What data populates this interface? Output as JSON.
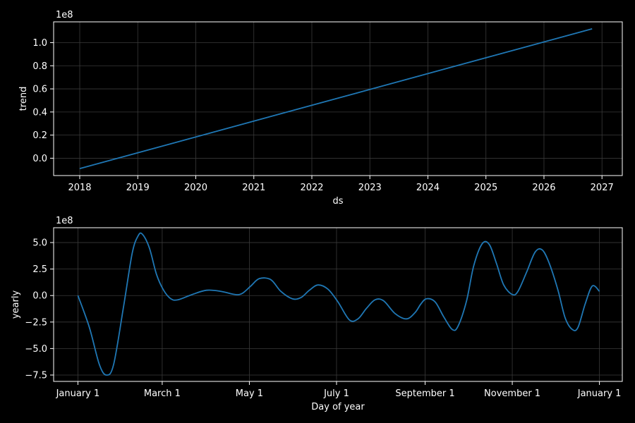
{
  "colors": {
    "background": "#000000",
    "foreground": "#ffffff",
    "line": "#1f77b4",
    "grid": "#3a3a3a"
  },
  "chart_data": [
    {
      "type": "line",
      "xlabel": "ds",
      "ylabel": "trend",
      "offset_label": "1e8",
      "grid": true,
      "x_ticks": [
        "2018",
        "2019",
        "2020",
        "2021",
        "2022",
        "2023",
        "2024",
        "2025",
        "2026",
        "2027"
      ],
      "y_ticks": [
        "0.0",
        "0.2",
        "0.4",
        "0.6",
        "0.8",
        "1.0"
      ],
      "xlim": [
        2017.55,
        2027.35
      ],
      "ylim": [
        -0.15,
        1.18
      ],
      "series": [
        {
          "x": [
            2018.0,
            2026.83
          ],
          "y": [
            -0.09,
            1.12
          ]
        }
      ]
    },
    {
      "type": "line",
      "xlabel": "Day of year",
      "ylabel": "yearly",
      "offset_label": "1e8",
      "grid": true,
      "x_ticks": [
        "January 1",
        "March 1",
        "May 1",
        "July 1",
        "September 1",
        "November 1",
        "January 1"
      ],
      "x_tick_days": [
        0,
        59,
        120,
        181,
        243,
        304,
        365
      ],
      "y_ticks": [
        "−7.5",
        "−5.0",
        "−2.5",
        "0.0",
        "2.5",
        "5.0"
      ],
      "y_tick_values": [
        -7.5,
        -5.0,
        -2.5,
        0.0,
        2.5,
        5.0
      ],
      "xlim": [
        -17,
        381
      ],
      "ylim": [
        -8.1,
        6.4
      ],
      "series": [
        {
          "x": [
            0,
            8,
            15,
            20,
            25,
            32,
            38,
            42,
            45,
            50,
            55,
            60,
            65,
            70,
            80,
            90,
            100,
            110,
            115,
            121,
            127,
            135,
            142,
            150,
            156,
            162,
            168,
            175,
            182,
            190,
            196,
            202,
            208,
            214,
            222,
            230,
            236,
            240,
            244,
            250,
            256,
            262,
            266,
            272,
            277,
            283,
            288,
            293,
            298,
            304,
            308,
            314,
            320,
            325,
            330,
            336,
            341,
            346,
            350,
            355,
            360,
            365
          ],
          "y": [
            0.0,
            -3.0,
            -6.5,
            -7.5,
            -6.5,
            -1.0,
            4.0,
            5.6,
            5.8,
            4.5,
            2.0,
            0.5,
            -0.3,
            -0.4,
            0.1,
            0.5,
            0.4,
            0.1,
            0.2,
            0.9,
            1.6,
            1.5,
            0.4,
            -0.3,
            -0.2,
            0.5,
            1.0,
            0.6,
            -0.6,
            -2.3,
            -2.2,
            -1.2,
            -0.4,
            -0.5,
            -1.7,
            -2.2,
            -1.6,
            -0.8,
            -0.3,
            -0.6,
            -2.0,
            -3.2,
            -2.9,
            -0.5,
            2.8,
            4.9,
            4.8,
            3.0,
            1.0,
            0.1,
            0.4,
            2.2,
            4.1,
            4.3,
            3.0,
            0.5,
            -2.1,
            -3.2,
            -3.0,
            -0.8,
            0.9,
            0.4
          ]
        }
      ]
    }
  ]
}
